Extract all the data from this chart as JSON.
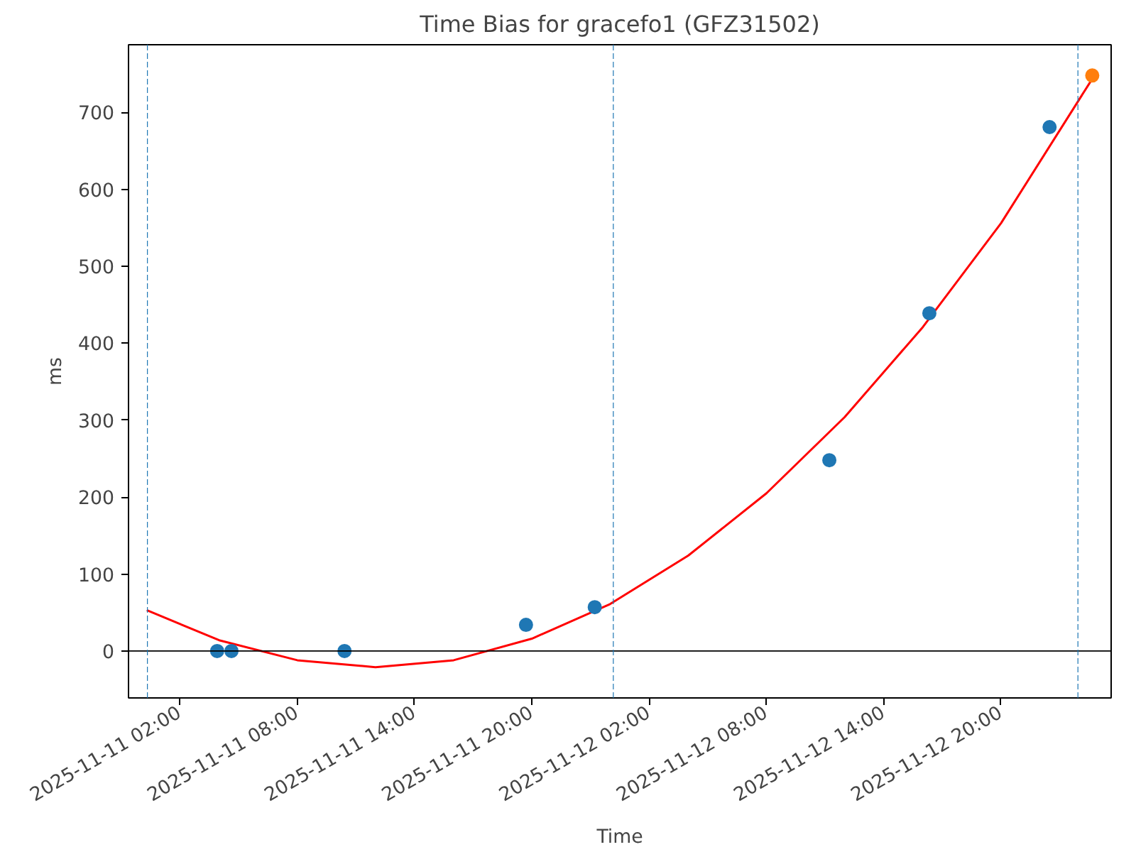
{
  "chart_data": {
    "type": "scatter",
    "title": "Time Bias for gracefo1 (GFZ31502)",
    "xlabel": "Time",
    "ylabel": "ms",
    "xlim": [
      "2025-11-10T23:22",
      "2025-11-13T01:38"
    ],
    "ylim": [
      -61,
      788
    ],
    "xticks": [
      {
        "value": "2025-11-11T02:00",
        "label": "2025-11-11 02:00"
      },
      {
        "value": "2025-11-11T08:00",
        "label": "2025-11-11 08:00"
      },
      {
        "value": "2025-11-11T14:00",
        "label": "2025-11-11 14:00"
      },
      {
        "value": "2025-11-11T20:00",
        "label": "2025-11-11 20:00"
      },
      {
        "value": "2025-11-12T02:00",
        "label": "2025-11-12 02:00"
      },
      {
        "value": "2025-11-12T08:00",
        "label": "2025-11-12 08:00"
      },
      {
        "value": "2025-11-12T14:00",
        "label": "2025-11-12 14:00"
      },
      {
        "value": "2025-11-12T20:00",
        "label": "2025-11-12 20:00"
      }
    ],
    "yticks": [
      0,
      100,
      200,
      300,
      400,
      500,
      600,
      700
    ],
    "grid": false,
    "marker": "circle",
    "series": [
      {
        "type": "line",
        "marker": "none",
        "color": "#ff0000",
        "x": [
          "2025-11-11T00:18",
          "2025-11-11T04:00",
          "2025-11-11T08:00",
          "2025-11-11T12:00",
          "2025-11-11T16:00",
          "2025-11-11T20:00",
          "2025-11-12T00:00",
          "2025-11-12T04:00",
          "2025-11-12T08:00",
          "2025-11-12T12:00",
          "2025-11-12T16:00",
          "2025-11-12T20:00",
          "2025-11-13T00:42"
        ],
        "values": [
          53,
          14,
          -12,
          -21,
          -12,
          16,
          61,
          124,
          205,
          304,
          421,
          556,
          745
        ]
      },
      {
        "color": "#1f77b4",
        "x": [
          "2025-11-11T03:54",
          "2025-11-11T04:38",
          "2025-11-11T10:25",
          "2025-11-11T19:42",
          "2025-11-11T23:13",
          "2025-11-12T11:13",
          "2025-11-12T16:20",
          "2025-11-12T22:29"
        ],
        "values": [
          0,
          0,
          0,
          34,
          57,
          248,
          439,
          681
        ]
      },
      {
        "color": "#ff7f0e",
        "x": [
          "2025-11-13T00:40"
        ],
        "values": [
          748
        ]
      }
    ],
    "ref_lines": [
      {
        "axis": "y",
        "value": 0,
        "color": "#000000",
        "line_style": "solid"
      },
      {
        "axis": "x",
        "value": "2025-11-11T00:20",
        "color": "#1f77b4",
        "line_style": "dashed"
      },
      {
        "axis": "x",
        "value": "2025-11-12T00:10",
        "color": "#1f77b4",
        "line_style": "dashed"
      },
      {
        "axis": "x",
        "value": "2025-11-12T23:56",
        "color": "#1f77b4",
        "line_style": "dashed"
      }
    ]
  }
}
